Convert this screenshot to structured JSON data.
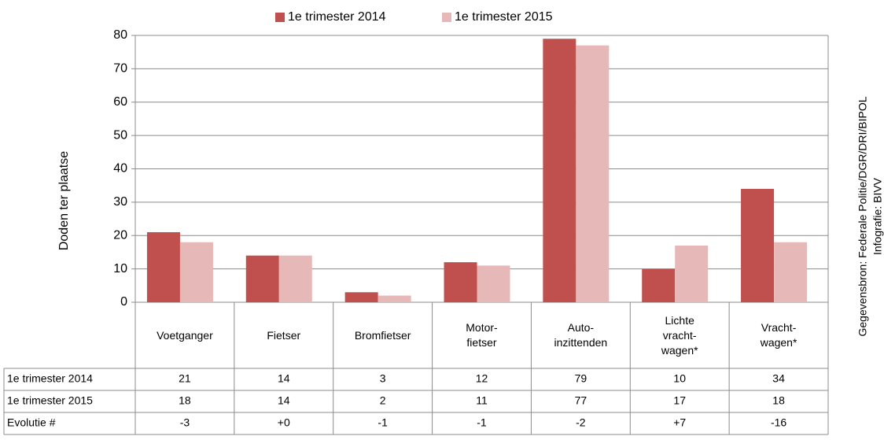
{
  "chart_data": {
    "type": "bar",
    "y_label": "Doden ter plaatse",
    "source": "Gegevensbron: Federale Politie/DGR/DRI/BIPOL",
    "credit": "Infografie: BIVV",
    "categories": [
      "Voetganger",
      "Fietser",
      "Bromfietser",
      "Motor-\nfietser",
      "Auto-\ninzittenden",
      "Lichte\nvracht-\nwagen*",
      "Vracht-\nwagen*"
    ],
    "series": [
      {
        "name": "1e trimester 2014",
        "color": "#c0504d",
        "values": [
          21,
          14,
          3,
          12,
          79,
          10,
          34
        ]
      },
      {
        "name": "1e trimester 2015",
        "color": "#e6b9b8",
        "values": [
          18,
          14,
          2,
          11,
          77,
          17,
          18
        ]
      }
    ],
    "evolution": {
      "name": "Evolutie #",
      "values": [
        -3,
        0,
        -1,
        -1,
        -2,
        7,
        -16
      ],
      "value_labels": [
        "-3",
        "+0",
        "-1",
        "-1",
        "-2",
        "+7",
        "-16"
      ]
    },
    "ylim": [
      0,
      80
    ],
    "yticks": [
      0,
      10,
      20,
      30,
      40,
      50,
      60,
      70,
      80
    ],
    "grid": true,
    "legend": "top"
  }
}
